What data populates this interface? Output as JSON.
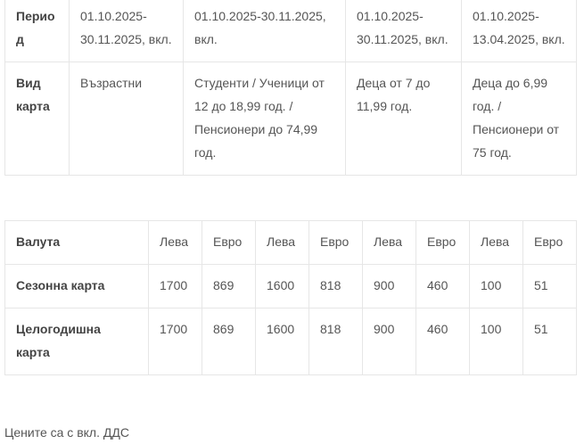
{
  "period_table": {
    "rows": [
      {
        "header": "Период",
        "cells": [
          "01.10.2025-30.11.2025, вкл.",
          "01.10.2025-30.11.2025, вкл.",
          "01.10.2025-30.11.2025, вкл.",
          "01.10.2025-13.04.2025, вкл."
        ]
      },
      {
        "header": "Вид карта",
        "cells": [
          "Възрастни",
          "Студенти / Ученици от 12 до 18,99 год. / Пенсионери до 74,99 год.",
          "Деца от 7 до 11,99 год.",
          "Деца до 6,99 год. / Пенсионери от 75 год."
        ]
      }
    ]
  },
  "price_table": {
    "rows": [
      {
        "header": "Валута",
        "cells": [
          "Лева",
          "Евро",
          "Лева",
          "Евро",
          "Лева",
          "Евро",
          "Лева",
          "Евро"
        ]
      },
      {
        "header": "Сезонна карта",
        "cells": [
          "1700",
          "869",
          "1600",
          "818",
          "900",
          "460",
          "100",
          "51"
        ]
      },
      {
        "header": "Целогодишна карта",
        "cells": [
          "1700",
          "869",
          "1600",
          "818",
          "900",
          "460",
          "100",
          "51"
        ]
      }
    ]
  },
  "note": "Цените са с вкл. ДДС"
}
